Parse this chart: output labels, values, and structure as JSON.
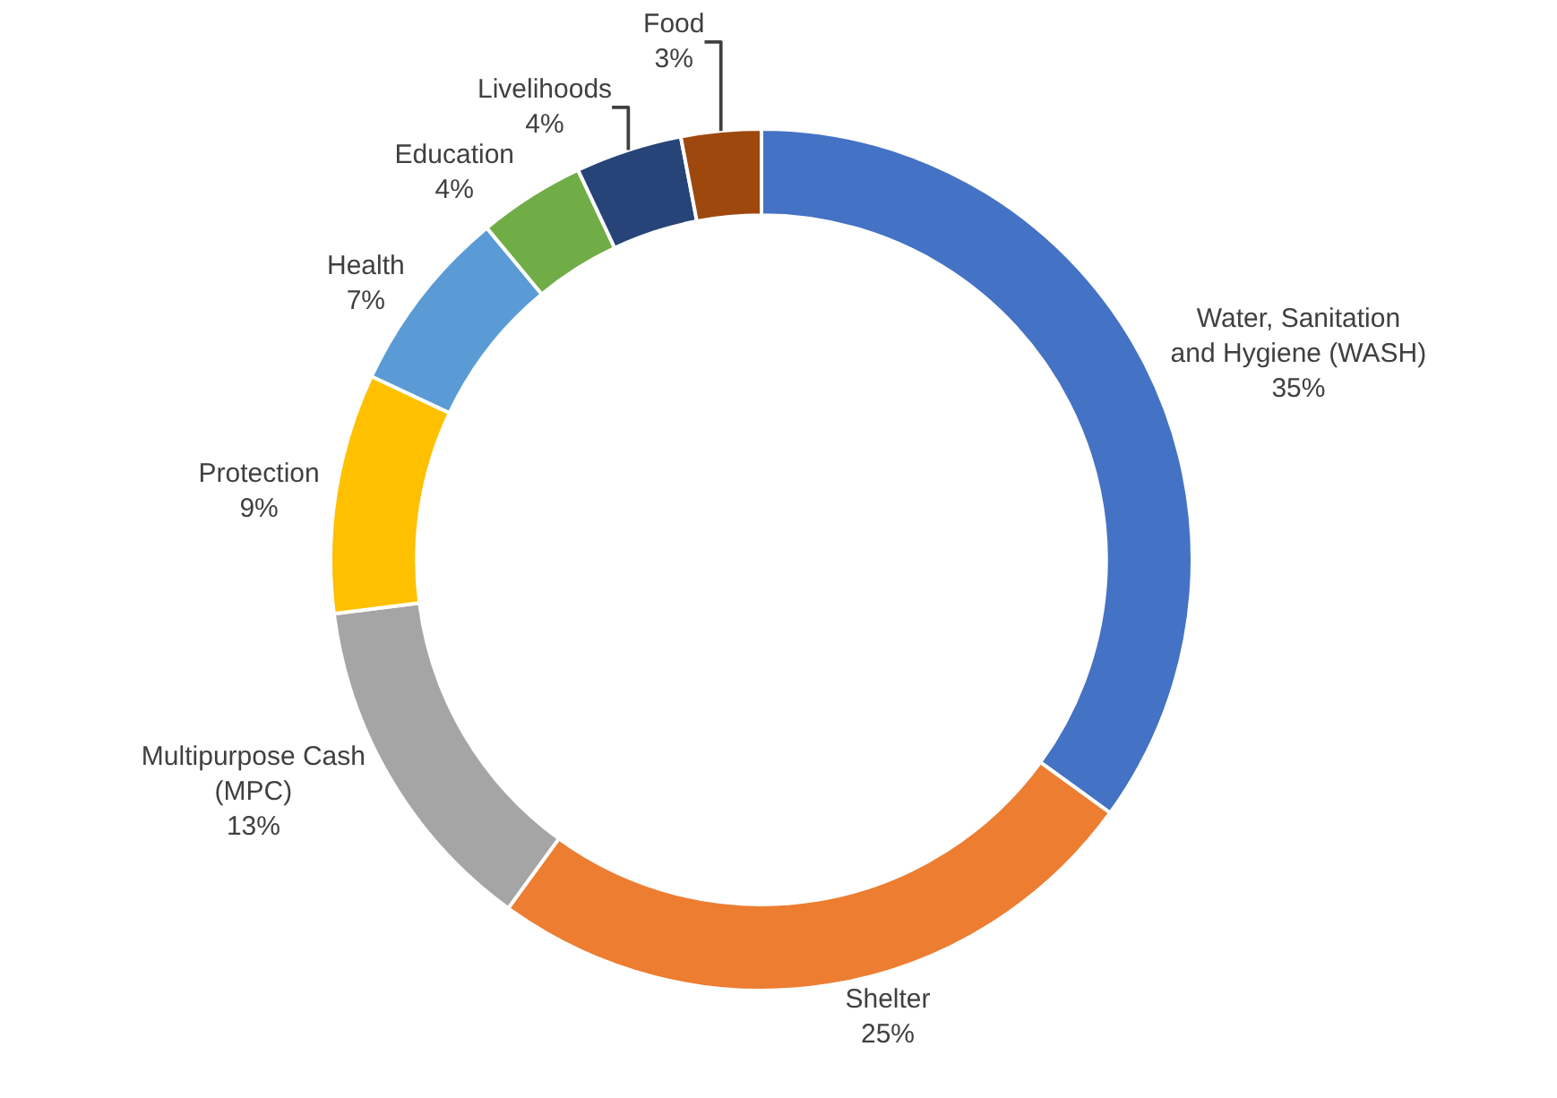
{
  "chart_data": {
    "type": "donut",
    "categories": [
      "Water, Sanitation and Hygiene (WASH)",
      "Shelter",
      "Multipurpose Cash (MPC)",
      "Protection",
      "Health",
      "Education",
      "Livelihoods",
      "Food"
    ],
    "values": [
      35,
      25,
      13,
      9,
      7,
      4,
      4,
      3
    ],
    "value_labels": [
      "35%",
      "25%",
      "13%",
      "9%",
      "7%",
      "4%",
      "4%",
      "3%"
    ],
    "colors": [
      "#4472c4",
      "#ed7d31",
      "#a5a5a5",
      "#ffc000",
      "#5b9bd5",
      "#70ad47",
      "#264478",
      "#9e480e"
    ],
    "legend": false
  }
}
